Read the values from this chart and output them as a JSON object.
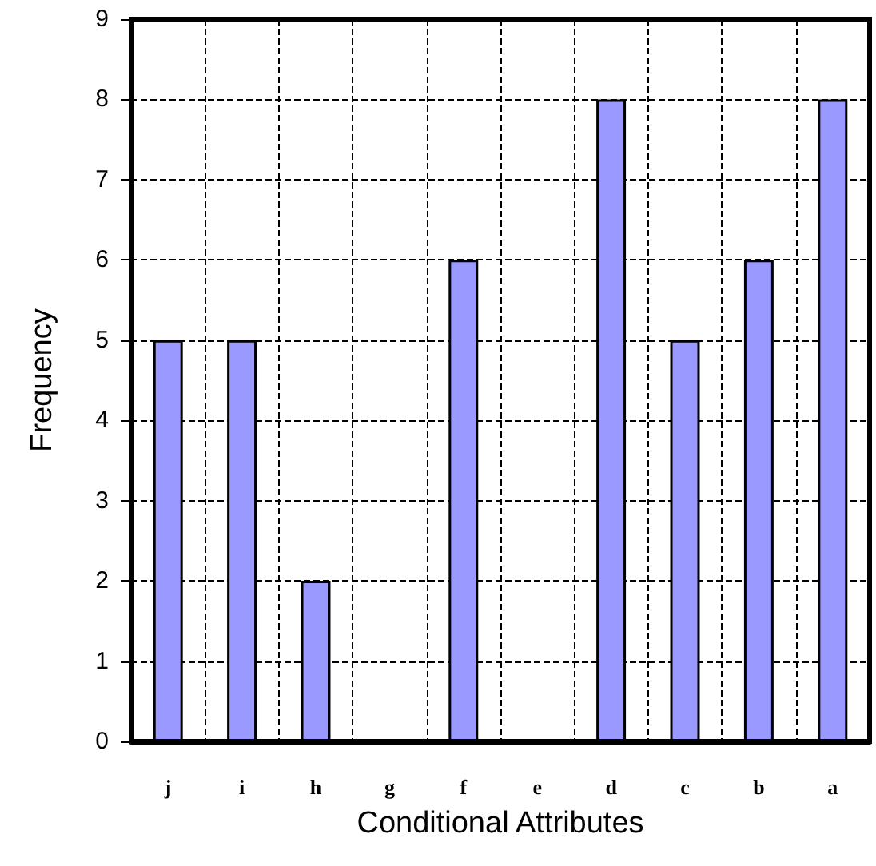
{
  "chart_data": {
    "type": "bar",
    "xlabel": "Conditional Attributes",
    "ylabel": "Frequency",
    "categories": [
      "j",
      "i",
      "h",
      "g",
      "f",
      "e",
      "d",
      "c",
      "b",
      "a"
    ],
    "values": [
      5,
      5,
      2,
      0,
      6,
      0,
      8,
      5,
      6,
      8
    ],
    "color": "#9999ff",
    "ylim": [
      0,
      9
    ],
    "yticks": [
      0,
      1,
      2,
      3,
      4,
      5,
      6,
      7,
      8,
      9
    ],
    "grid": true
  }
}
